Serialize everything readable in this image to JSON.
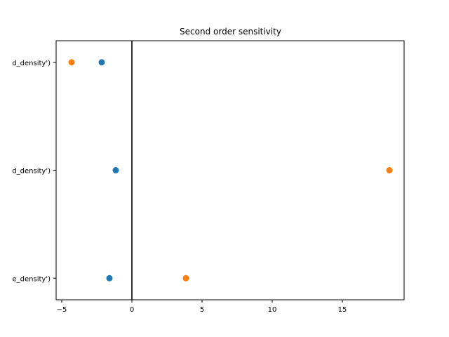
{
  "chart_data": {
    "type": "scatter",
    "title": "Second order sensitivity",
    "xlabel": "",
    "ylabel": "",
    "xlim": [
      -5.4,
      19.4
    ],
    "ylim": [
      -0.2,
      2.2
    ],
    "xticks": [
      -5,
      0,
      5,
      10,
      15
    ],
    "xtick_labels": [
      "−5",
      "0",
      "5",
      "10",
      "15"
    ],
    "categories": [
      "e_density')",
      "d_density')",
      "d_density')"
    ],
    "category_positions": [
      0,
      1,
      2
    ],
    "grid": false,
    "vline_x": 0,
    "series": [
      {
        "color": "#1f77b4",
        "points": [
          {
            "x": -1.6,
            "y": 0
          },
          {
            "x": -1.15,
            "y": 1
          },
          {
            "x": -2.15,
            "y": 2
          }
        ]
      },
      {
        "color": "#ff7f0e",
        "points": [
          {
            "x": 3.85,
            "y": 0
          },
          {
            "x": 18.35,
            "y": 1
          },
          {
            "x": -4.3,
            "y": 2
          }
        ]
      }
    ]
  }
}
